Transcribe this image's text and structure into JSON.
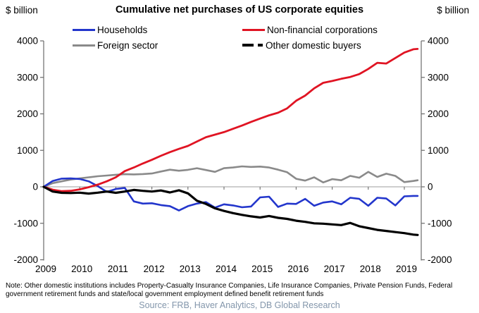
{
  "header": {
    "left_axis_unit": "$ billion",
    "right_axis_unit": "$ billion",
    "title": "Cumulative net purchases of US corporate equities"
  },
  "legend": [
    {
      "label": "Households",
      "color": "#2336cc",
      "style": "solid"
    },
    {
      "label": "Non-financial corporations",
      "color": "#e01423",
      "style": "solid"
    },
    {
      "label": "Foreign sector",
      "color": "#8a8a8a",
      "style": "solid"
    },
    {
      "label": "Other domestic buyers",
      "color": "#000000",
      "style": "dashed"
    }
  ],
  "chart_data": {
    "type": "line",
    "title": "Cumulative net purchases of US corporate equities",
    "ylabel_left": "$ billion",
    "ylabel_right": "$ billion",
    "ylim": [
      -2000,
      4000
    ],
    "y_ticks": [
      4000,
      3000,
      2000,
      1000,
      0,
      -1000,
      -2000
    ],
    "x_tick_labels": [
      "2009",
      "2010",
      "2011",
      "2012",
      "2013",
      "2014",
      "2015",
      "2016",
      "2017",
      "2018",
      "2019"
    ],
    "grid": false,
    "zero_line": true,
    "legend_position": "top",
    "x": [
      2009,
      2009.25,
      2009.5,
      2009.75,
      2010,
      2010.25,
      2010.5,
      2010.75,
      2011,
      2011.25,
      2011.5,
      2011.75,
      2012,
      2012.25,
      2012.5,
      2012.75,
      2013,
      2013.25,
      2013.5,
      2013.75,
      2014,
      2014.25,
      2014.5,
      2014.75,
      2015,
      2015.25,
      2015.5,
      2015.75,
      2016,
      2016.25,
      2016.5,
      2016.75,
      2017,
      2017.25,
      2017.5,
      2017.75,
      2018,
      2018.25,
      2018.5,
      2018.75,
      2019,
      2019.25,
      2019.37
    ],
    "series": [
      {
        "name": "Foreign sector",
        "color": "#8a8a8a",
        "width": 2.6,
        "values": [
          0,
          100,
          150,
          200,
          230,
          260,
          290,
          310,
          330,
          345,
          340,
          350,
          365,
          420,
          470,
          440,
          465,
          510,
          460,
          410,
          510,
          530,
          560,
          545,
          555,
          530,
          470,
          400,
          220,
          170,
          260,
          120,
          210,
          180,
          300,
          250,
          410,
          270,
          360,
          300,
          130,
          160,
          180
        ]
      },
      {
        "name": "Households",
        "color": "#2336cc",
        "width": 2.6,
        "values": [
          0,
          160,
          225,
          230,
          215,
          150,
          20,
          -140,
          -60,
          -30,
          -400,
          -460,
          -450,
          -500,
          -530,
          -650,
          -530,
          -460,
          -420,
          -570,
          -480,
          -510,
          -560,
          -540,
          -290,
          -270,
          -550,
          -460,
          -470,
          -330,
          -520,
          -430,
          -400,
          -480,
          -300,
          -330,
          -520,
          -300,
          -320,
          -510,
          -260,
          -250,
          -250
        ]
      },
      {
        "name": "Non-financial corporations",
        "color": "#e01423",
        "width": 2.8,
        "values": [
          0,
          -80,
          -120,
          -110,
          -70,
          -10,
          60,
          150,
          260,
          430,
          530,
          640,
          740,
          850,
          950,
          1040,
          1120,
          1240,
          1360,
          1430,
          1500,
          1590,
          1680,
          1780,
          1870,
          1960,
          2030,
          2150,
          2360,
          2500,
          2700,
          2850,
          2900,
          2960,
          3010,
          3090,
          3230,
          3400,
          3380,
          3530,
          3680,
          3770,
          3780
        ]
      },
      {
        "name": "Other domestic buyers",
        "color": "#000000",
        "width": 3.2,
        "values": [
          0,
          -130,
          -165,
          -170,
          -160,
          -185,
          -160,
          -130,
          -165,
          -130,
          -85,
          -110,
          -130,
          -100,
          -155,
          -95,
          -180,
          -380,
          -470,
          -590,
          -660,
          -720,
          -770,
          -810,
          -840,
          -800,
          -850,
          -880,
          -930,
          -960,
          -1000,
          -1010,
          -1030,
          -1050,
          -990,
          -1080,
          -1130,
          -1180,
          -1210,
          -1240,
          -1270,
          -1310,
          -1320
        ]
      }
    ],
    "axis_color": "#6b6b6b",
    "zero_line_color": "#9d9d9d"
  },
  "footer": {
    "note": "Note: Other domestic institutions includes Property-Casualty Insurance Companies, Life Insurance Companies, Private Pension Funds, Federal government retirement funds and state/local government employment defined benefit retirement funds",
    "source": "Source: FRB, Haver Analytics, DB Global Research",
    "source_color": "#8396ab"
  }
}
